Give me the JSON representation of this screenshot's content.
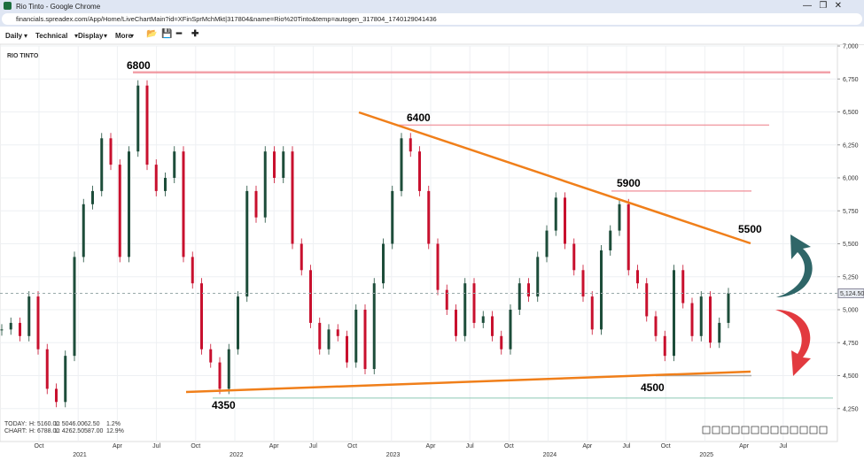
{
  "browser": {
    "title": "Rio Tinto - Google Chrome",
    "url": "financials.spreadex.com/App/Home/LiveChartMain?id=XFinSprMchMkt|317804&name=Rio%20Tinto&temp=autogen_317804_1740129041436"
  },
  "toolbar": {
    "items": [
      "Daily",
      "Technical",
      "Display",
      "More"
    ]
  },
  "chart_data": {
    "type": "candlestick",
    "title": "RIO TINTO",
    "values": [
      4850,
      4900,
      4800,
      5100,
      4700,
      4400,
      4300,
      4650,
      5400,
      5800,
      5900,
      6300,
      6100,
      5400,
      6200,
      6700,
      6100,
      5900,
      6000,
      6200,
      5400,
      5200,
      4700,
      4600,
      4400,
      4700,
      5100,
      5900,
      5700,
      6200,
      6000,
      6200,
      5500,
      5300,
      4900,
      4700,
      4850,
      4800,
      4600,
      5000,
      4550,
      5200,
      5500,
      5900,
      6300,
      6200,
      5900,
      5500,
      5150,
      5000,
      4800,
      5200,
      4900,
      4950,
      4800,
      4700,
      5000,
      5200,
      5100,
      5400,
      5600,
      5850,
      5500,
      5300,
      5100,
      4850,
      5450,
      5600,
      5800,
      5300,
      5200,
      4950,
      4800,
      4650,
      5300,
      5050,
      4800,
      5100,
      4750,
      4900,
      5125
    ],
    "up_color": "#1d4d3a",
    "down_color": "#c8102e",
    "ylim": [
      4000,
      7000
    ],
    "yticks": [
      {
        "value": 4250,
        "label": "4,250"
      },
      {
        "value": 4500,
        "label": "4,500"
      },
      {
        "value": 4750,
        "label": "4,750"
      },
      {
        "value": 5000,
        "label": "5,000"
      },
      {
        "value": 5250,
        "label": "5,250"
      },
      {
        "value": 5500,
        "label": "5,500"
      },
      {
        "value": 5750,
        "label": "5,750"
      },
      {
        "value": 6000,
        "label": "6,000"
      },
      {
        "value": 6250,
        "label": "6,250"
      },
      {
        "value": 6500,
        "label": "6,500"
      },
      {
        "value": 6750,
        "label": "6,750"
      },
      {
        "value": 7000,
        "label": "7,000"
      }
    ],
    "xticks": [
      "Oct",
      null,
      "Apr",
      "Jul",
      "Oct",
      null,
      "Apr",
      "Jul",
      "Oct",
      null,
      "Apr",
      "Jul",
      "Oct",
      null,
      "Apr",
      "Jul",
      "Oct",
      null,
      "Apr",
      "Jul"
    ],
    "years": [
      "2021",
      "2022",
      "2023",
      "2024",
      "2025"
    ],
    "grid": true,
    "resistance": [
      6800,
      6400,
      5900
    ],
    "annotations": [
      6800,
      6400,
      5900,
      5500,
      4350,
      4500
    ],
    "current_price": {
      "value": 5124.5,
      "label": "5,124.50"
    },
    "stats": [
      [
        "TODAY:",
        "H: 5160.00",
        "L: 5046.00",
        "62.50",
        "1.2%"
      ],
      [
        "CHART:",
        "H: 6788.00",
        "L: 4262.50",
        "587.00",
        "12.9%"
      ]
    ]
  }
}
